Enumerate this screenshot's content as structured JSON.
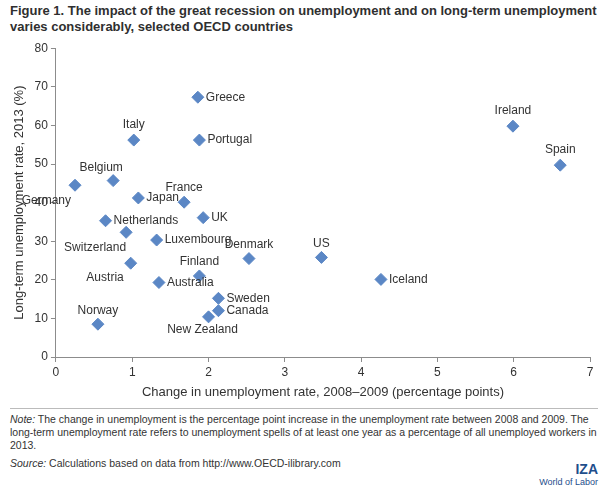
{
  "chart_data": {
    "type": "scatter",
    "title": "Figure 1. The impact of the great recession on unemployment and on long-term unemployment varies considerably, selected OECD countries",
    "x_label": "Change in unemployment rate, 2008–2009 (percentage points)",
    "y_label": "Long-term unemployment rate, 2013 (%)",
    "labels": [
      "Germany",
      "Belgium",
      "Japan",
      "Italy",
      "Netherlands",
      "Switzerland",
      "Luxembourg",
      "Austria",
      "Australia",
      "Norway",
      "France",
      "UK",
      "Greece",
      "Portugal",
      "Finland",
      "Sweden",
      "Canada",
      "New Zealand",
      "Denmark",
      "US",
      "Iceland",
      "Ireland",
      "Spain"
    ],
    "x": [
      0.25,
      0.75,
      1.08,
      1.02,
      0.65,
      0.92,
      1.32,
      0.98,
      1.35,
      0.55,
      1.68,
      1.93,
      1.86,
      1.88,
      1.88,
      2.13,
      2.13,
      2.0,
      2.53,
      3.48,
      4.26,
      5.99,
      6.61
    ],
    "values": [
      44.5,
      45.7,
      41.2,
      56.2,
      35.3,
      32.3,
      30.3,
      24.3,
      19.3,
      8.5,
      40.1,
      36.1,
      67.3,
      56.2,
      21.0,
      15.2,
      12.0,
      10.4,
      25.5,
      25.8,
      20.1,
      59.8,
      49.7
    ],
    "color": "#5b87c5",
    "marker": "diamond",
    "xlim": [
      0,
      7
    ],
    "xticks": [
      0,
      1,
      2,
      3,
      4,
      5,
      6,
      7
    ],
    "ylim": [
      0,
      80
    ],
    "yticks": [
      0,
      10,
      20,
      30,
      40,
      50,
      60,
      70,
      80
    ],
    "grid": false,
    "note_label": "Note:",
    "note": "The change in unemployment is the percentage point increase in the unemployment rate between 2008 and 2009. The long-term unemployment rate refers to unemployment spells of at least one year as a percentage of all unemployed workers in 2013.",
    "source_label": "Source:",
    "source": "Calculations based on data from http://www.OECD-ilibrary.com",
    "logo": [
      "IZA",
      "World of Labor"
    ]
  }
}
